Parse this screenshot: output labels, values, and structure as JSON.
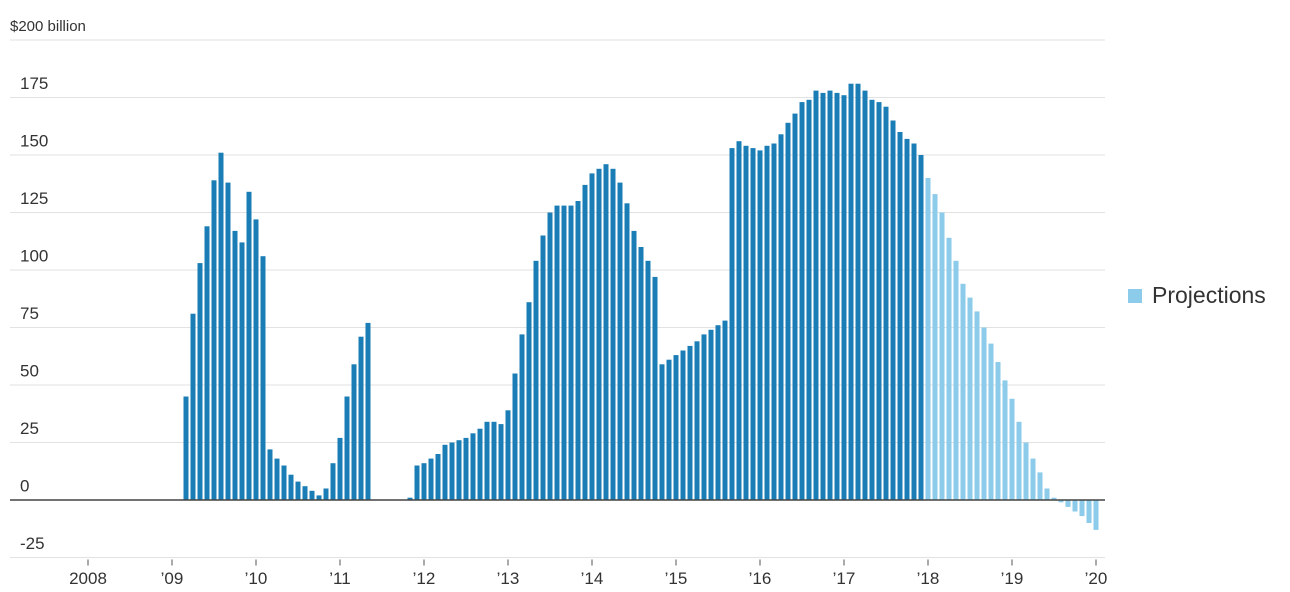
{
  "chart_data": {
    "type": "bar",
    "categories": [
      "2008",
      null,
      null,
      null,
      null,
      null,
      null,
      null,
      null,
      null,
      null,
      null,
      "’09",
      null,
      null,
      null,
      null,
      null,
      null,
      null,
      null,
      null,
      null,
      null,
      "’10",
      null,
      null,
      null,
      null,
      null,
      null,
      null,
      null,
      null,
      null,
      null,
      "’11",
      null,
      null,
      null,
      null,
      null,
      null,
      null,
      null,
      null,
      null,
      null,
      "’12",
      null,
      null,
      null,
      null,
      null,
      null,
      null,
      null,
      null,
      null,
      null,
      "’13",
      null,
      null,
      null,
      null,
      null,
      null,
      null,
      null,
      null,
      null,
      null,
      "’14",
      null,
      null,
      null,
      null,
      null,
      null,
      null,
      null,
      null,
      null,
      null,
      "’15",
      null,
      null,
      null,
      null,
      null,
      null,
      null,
      null,
      null,
      null,
      null,
      "’16",
      null,
      null,
      null,
      null,
      null,
      null,
      null,
      null,
      null,
      null,
      null,
      "’17",
      null,
      null,
      null,
      null,
      null,
      null,
      null,
      null,
      null,
      null,
      null,
      "’18",
      null,
      null,
      null,
      null,
      null,
      null,
      null,
      null,
      null,
      null,
      null,
      "’19",
      null,
      null,
      null,
      null,
      null,
      null,
      null,
      null,
      null,
      null,
      null,
      "’20"
    ],
    "series": [
      {
        "color": "#1b7db5",
        "values": [
          null,
          null,
          null,
          null,
          null,
          null,
          null,
          null,
          null,
          null,
          null,
          null,
          null,
          null,
          45,
          81,
          103,
          119,
          139,
          151,
          138,
          117,
          112,
          134,
          122,
          106,
          22,
          18,
          15,
          11,
          8,
          6,
          4,
          2,
          5,
          16,
          27,
          45,
          59,
          71,
          77,
          null,
          null,
          null,
          null,
          null,
          1,
          15,
          16,
          18,
          20,
          24,
          25,
          26,
          27,
          29,
          31,
          34,
          34,
          33,
          39,
          55,
          72,
          86,
          104,
          115,
          125,
          128,
          128,
          128,
          130,
          137,
          142,
          144,
          146,
          144,
          138,
          129,
          117,
          110,
          104,
          97,
          59,
          61,
          63,
          65,
          67,
          69,
          72,
          74,
          76,
          78,
          153,
          156,
          154,
          153,
          152,
          154,
          155,
          159,
          164,
          168,
          173,
          174,
          178,
          177,
          178,
          177,
          176,
          181,
          181,
          178,
          174,
          173,
          171,
          165,
          160,
          157,
          155,
          150,
          null,
          null,
          null,
          null,
          null,
          null,
          null,
          null,
          null,
          null,
          null,
          null,
          null,
          null,
          null,
          null,
          null,
          null,
          null,
          null,
          null,
          null,
          null,
          null,
          null
        ]
      },
      {
        "name": "Projections",
        "color": "#8ccbea",
        "values": [
          null,
          null,
          null,
          null,
          null,
          null,
          null,
          null,
          null,
          null,
          null,
          null,
          null,
          null,
          null,
          null,
          null,
          null,
          null,
          null,
          null,
          null,
          null,
          null,
          null,
          null,
          null,
          null,
          null,
          null,
          null,
          null,
          null,
          null,
          null,
          null,
          null,
          null,
          null,
          null,
          null,
          null,
          null,
          null,
          null,
          null,
          null,
          null,
          null,
          null,
          null,
          null,
          null,
          null,
          null,
          null,
          null,
          null,
          null,
          null,
          null,
          null,
          null,
          null,
          null,
          null,
          null,
          null,
          null,
          null,
          null,
          null,
          null,
          null,
          null,
          null,
          null,
          null,
          null,
          null,
          null,
          null,
          null,
          null,
          null,
          null,
          null,
          null,
          null,
          null,
          null,
          null,
          null,
          null,
          null,
          null,
          null,
          null,
          null,
          null,
          null,
          null,
          null,
          null,
          null,
          null,
          null,
          null,
          null,
          null,
          null,
          null,
          null,
          null,
          null,
          null,
          null,
          null,
          null,
          null,
          140,
          133,
          125,
          114,
          104,
          94,
          88,
          82,
          75,
          68,
          60,
          52,
          44,
          34,
          25,
          18,
          12,
          5,
          1,
          -1,
          -3,
          -5,
          -7,
          -10,
          -13
        ]
      }
    ],
    "ylim": [
      -25,
      200
    ],
    "yticks": [
      -25,
      0,
      25,
      50,
      75,
      100,
      125,
      150,
      175,
      {
        "value": 200,
        "label": "$200 billion"
      }
    ],
    "grid": true
  }
}
